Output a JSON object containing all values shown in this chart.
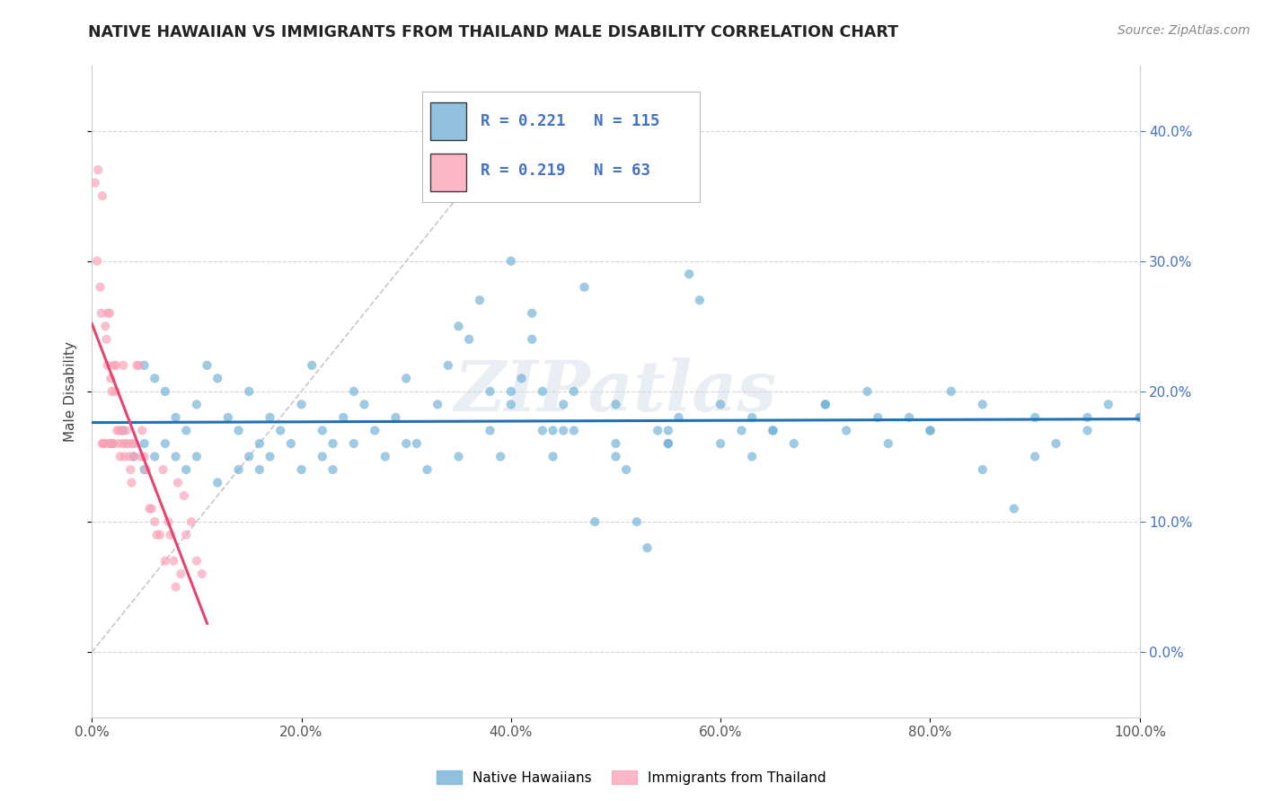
{
  "title": "NATIVE HAWAIIAN VS IMMIGRANTS FROM THAILAND MALE DISABILITY CORRELATION CHART",
  "source": "Source: ZipAtlas.com",
  "ylabel": "Male Disability",
  "watermark": "ZIPatlas",
  "xlim": [
    0,
    1.0
  ],
  "ylim": [
    -0.05,
    0.45
  ],
  "xticks": [
    0.0,
    0.2,
    0.4,
    0.6,
    0.8,
    1.0
  ],
  "xtick_labels": [
    "0.0%",
    "20.0%",
    "40.0%",
    "60.0%",
    "80.0%",
    "100.0%"
  ],
  "yticks": [
    0.0,
    0.1,
    0.2,
    0.3,
    0.4
  ],
  "ytick_labels": [
    "0.0%",
    "10.0%",
    "20.0%",
    "30.0%",
    "40.0%"
  ],
  "blue_color": "#6baed6",
  "pink_color": "#fa9fb5",
  "blue_line_color": "#2171b5",
  "pink_line_color": "#e8436e",
  "diagonal_color": "#ccbbcc",
  "R_blue": 0.221,
  "N_blue": 115,
  "R_pink": 0.219,
  "N_pink": 63,
  "legend_label_blue": "Native Hawaiians",
  "legend_label_pink": "Immigrants from Thailand",
  "blue_points_x": [
    0.02,
    0.03,
    0.04,
    0.05,
    0.05,
    0.05,
    0.06,
    0.06,
    0.07,
    0.07,
    0.08,
    0.08,
    0.09,
    0.09,
    0.1,
    0.1,
    0.11,
    0.12,
    0.12,
    0.13,
    0.14,
    0.14,
    0.15,
    0.15,
    0.16,
    0.16,
    0.17,
    0.17,
    0.18,
    0.19,
    0.2,
    0.2,
    0.21,
    0.22,
    0.22,
    0.23,
    0.23,
    0.24,
    0.25,
    0.25,
    0.26,
    0.27,
    0.28,
    0.29,
    0.3,
    0.31,
    0.32,
    0.33,
    0.34,
    0.35,
    0.36,
    0.37,
    0.38,
    0.38,
    0.39,
    0.4,
    0.4,
    0.41,
    0.42,
    0.42,
    0.43,
    0.44,
    0.44,
    0.45,
    0.46,
    0.47,
    0.48,
    0.5,
    0.51,
    0.52,
    0.53,
    0.54,
    0.55,
    0.56,
    0.57,
    0.58,
    0.6,
    0.62,
    0.63,
    0.65,
    0.67,
    0.7,
    0.72,
    0.74,
    0.76,
    0.78,
    0.8,
    0.82,
    0.85,
    0.88,
    0.9,
    0.92,
    0.95,
    0.97,
    1.0,
    0.4,
    0.43,
    0.46,
    0.5,
    0.55,
    0.6,
    0.63,
    0.7,
    0.75,
    0.8,
    0.85,
    0.9,
    0.95,
    1.0,
    0.3,
    0.35,
    0.45,
    0.5,
    0.55,
    0.65
  ],
  "blue_points_y": [
    0.16,
    0.17,
    0.15,
    0.22,
    0.16,
    0.14,
    0.15,
    0.21,
    0.2,
    0.16,
    0.18,
    0.15,
    0.17,
    0.14,
    0.19,
    0.15,
    0.22,
    0.21,
    0.13,
    0.18,
    0.17,
    0.14,
    0.2,
    0.15,
    0.16,
    0.14,
    0.18,
    0.15,
    0.17,
    0.16,
    0.19,
    0.14,
    0.22,
    0.15,
    0.17,
    0.14,
    0.16,
    0.18,
    0.2,
    0.16,
    0.19,
    0.17,
    0.15,
    0.18,
    0.21,
    0.16,
    0.14,
    0.19,
    0.22,
    0.25,
    0.24,
    0.27,
    0.2,
    0.17,
    0.15,
    0.2,
    0.19,
    0.21,
    0.24,
    0.26,
    0.2,
    0.17,
    0.15,
    0.19,
    0.17,
    0.28,
    0.1,
    0.16,
    0.14,
    0.1,
    0.08,
    0.17,
    0.16,
    0.18,
    0.29,
    0.27,
    0.19,
    0.17,
    0.15,
    0.17,
    0.16,
    0.19,
    0.17,
    0.2,
    0.16,
    0.18,
    0.17,
    0.2,
    0.14,
    0.11,
    0.15,
    0.16,
    0.18,
    0.19,
    0.18,
    0.3,
    0.17,
    0.2,
    0.19,
    0.17,
    0.16,
    0.18,
    0.19,
    0.18,
    0.17,
    0.19,
    0.18,
    0.17,
    0.18,
    0.16,
    0.15,
    0.17,
    0.15,
    0.16,
    0.17
  ],
  "pink_points_x": [
    0.003,
    0.005,
    0.006,
    0.008,
    0.009,
    0.01,
    0.01,
    0.011,
    0.012,
    0.013,
    0.014,
    0.015,
    0.015,
    0.016,
    0.017,
    0.018,
    0.018,
    0.019,
    0.02,
    0.021,
    0.022,
    0.023,
    0.024,
    0.025,
    0.026,
    0.027,
    0.028,
    0.029,
    0.03,
    0.031,
    0.032,
    0.033,
    0.035,
    0.036,
    0.037,
    0.038,
    0.039,
    0.04,
    0.041,
    0.043,
    0.045,
    0.047,
    0.048,
    0.05,
    0.052,
    0.055,
    0.057,
    0.06,
    0.062,
    0.065,
    0.068,
    0.07,
    0.073,
    0.075,
    0.078,
    0.08,
    0.082,
    0.085,
    0.088,
    0.09,
    0.095,
    0.1,
    0.105
  ],
  "pink_points_y": [
    0.36,
    0.3,
    0.37,
    0.28,
    0.26,
    0.35,
    0.16,
    0.16,
    0.16,
    0.25,
    0.24,
    0.26,
    0.22,
    0.16,
    0.26,
    0.21,
    0.16,
    0.2,
    0.16,
    0.22,
    0.2,
    0.22,
    0.17,
    0.16,
    0.17,
    0.15,
    0.17,
    0.16,
    0.22,
    0.15,
    0.16,
    0.17,
    0.16,
    0.15,
    0.14,
    0.13,
    0.16,
    0.15,
    0.16,
    0.22,
    0.22,
    0.15,
    0.17,
    0.15,
    0.14,
    0.11,
    0.11,
    0.1,
    0.09,
    0.09,
    0.14,
    0.07,
    0.1,
    0.09,
    0.07,
    0.05,
    0.13,
    0.06,
    0.12,
    0.09,
    0.1,
    0.07,
    0.06
  ]
}
